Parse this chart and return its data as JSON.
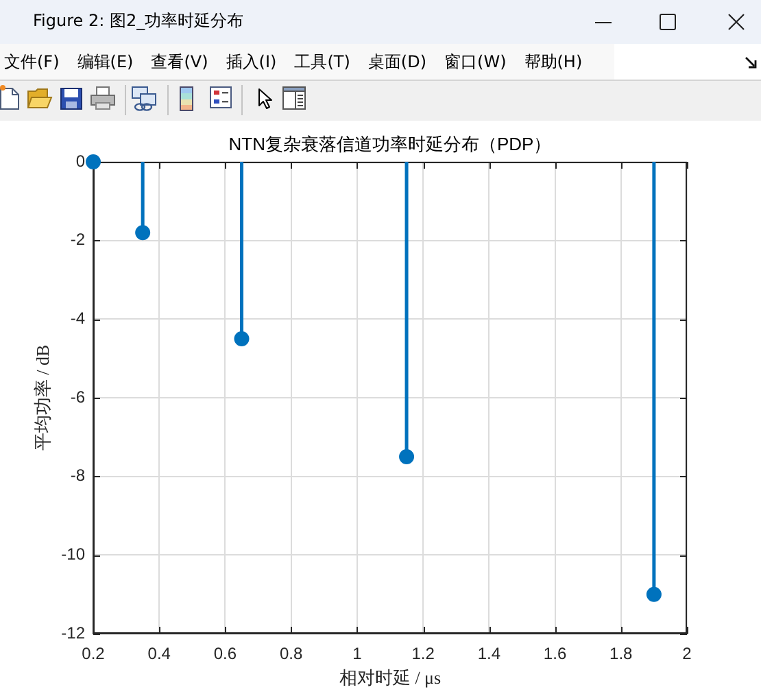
{
  "chart_data": {
    "type": "lollipop",
    "title": "NTN复杂衰落信道功率时延分布（PDP）",
    "xlabel": "相对时延 / μs",
    "ylabel": "平均功率 / dB",
    "x": [
      0.2,
      0.35,
      0.65,
      1.15,
      1.9
    ],
    "values": [
      0,
      -1.8,
      -4.5,
      -7.5,
      -11
    ],
    "color": "#0072bd",
    "xlim": [
      0.2,
      2
    ],
    "ylim": [
      -12,
      0
    ],
    "xticks": [
      0.2,
      0.4,
      0.6,
      0.8,
      1,
      1.2,
      1.4,
      1.6,
      1.8,
      2
    ],
    "yticks": [
      -12,
      -10,
      -8,
      -6,
      -4,
      -2,
      0
    ],
    "grid": true,
    "marker": "circle",
    "annotations": [
      "Figure 2: 图2_功率时延分布",
      "文件(F)",
      "编辑(E)",
      "查看(V)",
      "插入(I)",
      "工具(T)",
      "桌面(D)",
      "窗口(W)",
      "帮助(H)"
    ]
  }
}
